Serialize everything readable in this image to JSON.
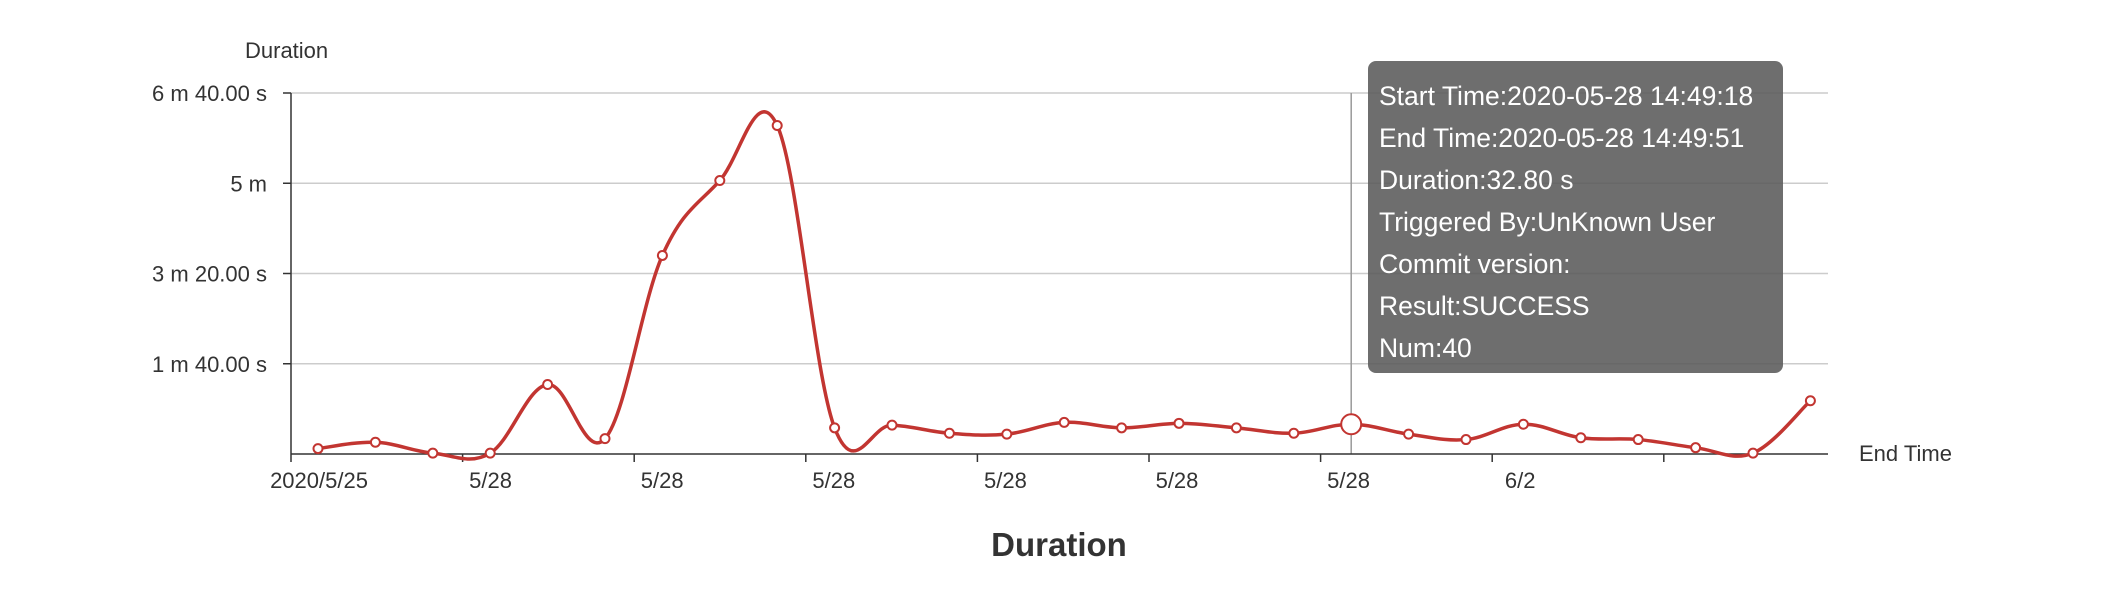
{
  "colors": {
    "line": "#c23531",
    "axis": "#333333",
    "grid": "#cccccc",
    "text": "#333333",
    "tooltip_bg": "#5a5a5a"
  },
  "chart_data": {
    "type": "line",
    "title": "Duration",
    "xlabel": "End Time",
    "ylabel": "Duration",
    "y_unit": "seconds",
    "ylim": [
      0,
      400
    ],
    "y_ticks": [
      {
        "value": 100,
        "label": "1 m 40.00 s"
      },
      {
        "value": 200,
        "label": "3 m 20.00 s"
      },
      {
        "value": 300,
        "label": "5 m"
      },
      {
        "value": 400,
        "label": "6 m 40.00 s"
      }
    ],
    "x_tick_labels": [
      "2020/5/25",
      "5/28",
      "5/28",
      "5/28",
      "5/28",
      "5/28",
      "5/28",
      "6/2"
    ],
    "grid": true,
    "smooth": true,
    "series": [
      {
        "values": [
          6,
          13,
          1,
          1,
          77,
          17,
          220,
          303,
          364,
          29,
          32,
          23,
          22,
          35,
          29,
          34,
          29,
          23,
          33,
          22,
          16,
          33,
          18,
          16,
          7,
          1,
          59
        ]
      }
    ],
    "highlight_index": 18
  },
  "tooltip": {
    "lines": [
      "Start Time:2020-05-28 14:49:18",
      "End Time:2020-05-28 14:49:51",
      "Duration:32.80 s",
      "Triggered By:UnKnown User",
      "Commit version:",
      "Result:SUCCESS",
      "Num:40"
    ]
  }
}
